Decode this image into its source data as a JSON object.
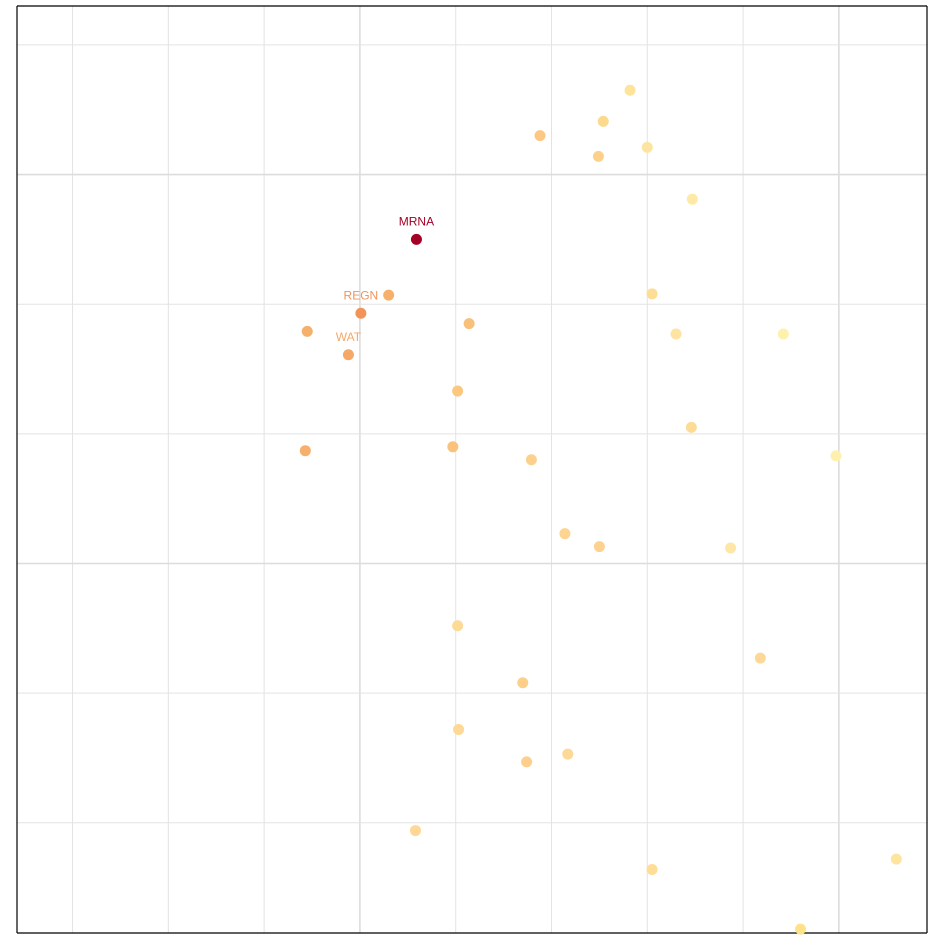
{
  "chart_data": {
    "type": "scatter",
    "title": "",
    "xlabel": "",
    "ylabel": "",
    "xlim": [
      0,
      9.5
    ],
    "ylim": [
      0,
      7.15
    ],
    "grid": true,
    "x_gridlines": [
      0.58,
      1.58,
      2.58,
      3.58,
      4.58,
      5.58,
      6.58,
      7.58,
      8.58
    ],
    "x_major_gridlines": [
      3.58,
      8.58
    ],
    "y_gridlines": [
      0.85,
      1.85,
      2.85,
      3.85,
      4.85,
      5.85,
      6.85
    ],
    "y_major_gridlines": [
      2.85,
      5.85
    ],
    "color_scale": {
      "low": "#fff0a8",
      "mid": "#f6a864",
      "high": "#a50026"
    },
    "points": [
      {
        "x": 6.4,
        "y": 6.5,
        "color": "#fde49a"
      },
      {
        "x": 6.12,
        "y": 6.26,
        "color": "#fdd98c"
      },
      {
        "x": 5.46,
        "y": 6.15,
        "color": "#fcc884"
      },
      {
        "x": 6.07,
        "y": 5.99,
        "color": "#fdd18a"
      },
      {
        "x": 6.58,
        "y": 6.06,
        "color": "#fde4a0"
      },
      {
        "x": 7.05,
        "y": 5.66,
        "color": "#fee9a6"
      },
      {
        "x": 4.17,
        "y": 5.35,
        "color": "#a50026",
        "label": "MRNA"
      },
      {
        "x": 3.88,
        "y": 4.92,
        "color": "#f6b06c"
      },
      {
        "x": 3.59,
        "y": 4.78,
        "color": "#f29458",
        "label": "REGN"
      },
      {
        "x": 4.72,
        "y": 4.7,
        "color": "#f9c07a"
      },
      {
        "x": 6.63,
        "y": 4.93,
        "color": "#fedd94"
      },
      {
        "x": 6.88,
        "y": 4.62,
        "color": "#fee3a2"
      },
      {
        "x": 8.0,
        "y": 4.62,
        "color": "#fff0ac"
      },
      {
        "x": 3.03,
        "y": 4.64,
        "color": "#f6b06c"
      },
      {
        "x": 3.46,
        "y": 4.46,
        "color": "#f5a868",
        "label": "WAT"
      },
      {
        "x": 4.6,
        "y": 4.18,
        "color": "#fcc880"
      },
      {
        "x": 7.04,
        "y": 3.9,
        "color": "#fedc96"
      },
      {
        "x": 3.01,
        "y": 3.72,
        "color": "#f6b06c"
      },
      {
        "x": 4.55,
        "y": 3.75,
        "color": "#fbc27e"
      },
      {
        "x": 5.37,
        "y": 3.65,
        "color": "#fdd08c"
      },
      {
        "x": 8.55,
        "y": 3.68,
        "color": "#fff0ae"
      },
      {
        "x": 5.72,
        "y": 3.08,
        "color": "#fdd490"
      },
      {
        "x": 6.08,
        "y": 2.98,
        "color": "#fdd190"
      },
      {
        "x": 7.45,
        "y": 2.97,
        "color": "#fee7a6"
      },
      {
        "x": 4.6,
        "y": 2.37,
        "color": "#fddb96"
      },
      {
        "x": 7.76,
        "y": 2.12,
        "color": "#fdd896"
      },
      {
        "x": 5.28,
        "y": 1.93,
        "color": "#fcd088"
      },
      {
        "x": 4.61,
        "y": 1.57,
        "color": "#fdd896"
      },
      {
        "x": 5.75,
        "y": 1.38,
        "color": "#fdd896"
      },
      {
        "x": 5.32,
        "y": 1.32,
        "color": "#fcd08c"
      },
      {
        "x": 4.16,
        "y": 0.79,
        "color": "#fdd896"
      },
      {
        "x": 6.63,
        "y": 0.49,
        "color": "#fedd96"
      },
      {
        "x": 9.18,
        "y": 0.57,
        "color": "#fee59e"
      },
      {
        "x": 8.18,
        "y": 0.03,
        "color": "#fde28a"
      }
    ]
  }
}
